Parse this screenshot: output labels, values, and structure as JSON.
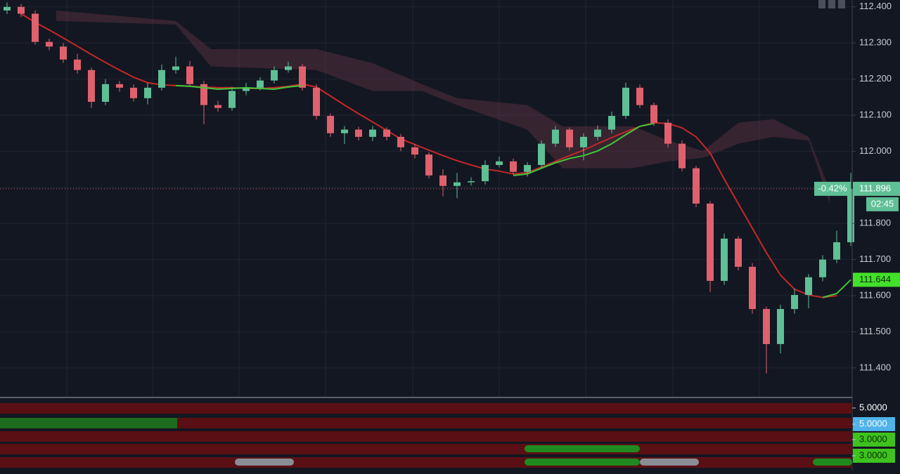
{
  "chart_data": {
    "type": "candlestick",
    "up_color": "#5fbf95",
    "down_color": "#e0616e",
    "ylim": [
      111.32,
      112.419
    ],
    "yticks": [
      {
        "value": 112.4,
        "label": "112.400"
      },
      {
        "value": 112.3,
        "label": "112.300"
      },
      {
        "value": 112.2,
        "label": "112.200"
      },
      {
        "value": 112.1,
        "label": "112.100"
      },
      {
        "value": 112.0,
        "label": "112.000"
      },
      {
        "value": 111.9,
        "label": "111.900"
      },
      {
        "value": 111.8,
        "label": "111.800"
      },
      {
        "value": 111.7,
        "label": "111.700"
      },
      {
        "value": 111.6,
        "label": "111.600"
      },
      {
        "value": 111.5,
        "label": "111.500"
      },
      {
        "value": 111.4,
        "label": "111.400"
      }
    ],
    "grid": true,
    "open": [
      112.39,
      112.4,
      112.381,
      112.303,
      112.29,
      112.254,
      112.225,
      112.137,
      112.186,
      112.176,
      112.147,
      112.176,
      112.225,
      112.235,
      112.186,
      112.128,
      112.12,
      112.167,
      112.176,
      112.196,
      112.225,
      112.235,
      112.176,
      112.098,
      112.05,
      112.06,
      112.04,
      112.06,
      112.04,
      112.011,
      111.991,
      111.933,
      111.904,
      111.914,
      111.917,
      111.962,
      111.972,
      111.943,
      111.962,
      112.021,
      112.06,
      112.011,
      112.04,
      112.06,
      112.098,
      112.176,
      112.128,
      112.079,
      112.021,
      111.953,
      111.855,
      111.641,
      111.758,
      111.68,
      111.563,
      111.466,
      111.563,
      111.602,
      111.651,
      111.7,
      111.748
    ],
    "high": [
      112.412,
      112.408,
      112.39,
      112.312,
      112.3,
      112.27,
      112.232,
      112.2,
      112.195,
      112.185,
      112.19,
      112.24,
      112.262,
      112.25,
      112.195,
      112.14,
      112.178,
      112.19,
      112.205,
      112.235,
      112.248,
      112.242,
      112.185,
      112.105,
      112.07,
      112.068,
      112.07,
      112.066,
      112.048,
      112.02,
      111.998,
      111.95,
      111.94,
      111.928,
      111.975,
      111.985,
      111.98,
      111.97,
      112.03,
      112.07,
      112.066,
      112.05,
      112.072,
      112.11,
      112.19,
      112.185,
      112.135,
      112.088,
      112.03,
      111.96,
      111.862,
      111.772,
      111.765,
      111.69,
      111.57,
      111.575,
      111.62,
      111.66,
      111.712,
      111.78,
      111.94
    ],
    "low": [
      112.38,
      112.372,
      112.295,
      112.28,
      112.245,
      112.215,
      112.12,
      112.128,
      112.165,
      112.138,
      112.13,
      112.168,
      112.215,
      112.178,
      112.075,
      112.11,
      112.112,
      112.155,
      112.168,
      112.188,
      112.218,
      112.168,
      112.088,
      112.04,
      112.02,
      112.03,
      112.028,
      112.03,
      112.0,
      111.98,
      111.925,
      111.875,
      111.87,
      111.905,
      111.908,
      111.955,
      111.935,
      111.93,
      111.955,
      112.012,
      112.002,
      111.975,
      112.03,
      112.05,
      112.09,
      112.12,
      112.07,
      112.01,
      111.945,
      111.845,
      111.61,
      111.63,
      111.67,
      111.55,
      111.385,
      111.44,
      111.55,
      111.565,
      111.64,
      111.69,
      111.738
    ],
    "close": [
      112.4,
      112.381,
      112.303,
      112.29,
      112.254,
      112.225,
      112.137,
      112.186,
      112.176,
      112.147,
      112.176,
      112.225,
      112.235,
      112.186,
      112.128,
      112.12,
      112.167,
      112.176,
      112.196,
      112.225,
      112.235,
      112.176,
      112.098,
      112.05,
      112.06,
      112.04,
      112.06,
      112.04,
      112.011,
      111.991,
      111.933,
      111.904,
      111.914,
      111.917,
      111.962,
      111.972,
      111.943,
      111.962,
      112.021,
      112.06,
      112.011,
      112.04,
      112.06,
      112.098,
      112.176,
      112.128,
      112.079,
      112.021,
      111.953,
      111.855,
      111.641,
      111.758,
      111.68,
      111.563,
      111.466,
      111.563,
      111.602,
      111.651,
      111.7,
      111.748,
      111.896
    ],
    "ma_red": {
      "color": "#c62828",
      "values": [
        null,
        112.381,
        112.357,
        112.336,
        112.314,
        112.291,
        112.268,
        112.246,
        112.225,
        112.205,
        112.19,
        112.184,
        112.182,
        112.18,
        112.178,
        112.176,
        112.176,
        112.174,
        112.174,
        112.176,
        112.18,
        112.186,
        112.178,
        112.153,
        112.128,
        112.104,
        112.081,
        112.058,
        112.034,
        112.019,
        112.003,
        111.988,
        111.974,
        111.962,
        111.951,
        111.945,
        111.937,
        111.941,
        111.956,
        111.972,
        111.988,
        112.003,
        112.021,
        112.038,
        112.054,
        112.069,
        112.079,
        112.077,
        112.065,
        112.04,
        111.995,
        111.923,
        111.855,
        111.787,
        111.719,
        111.657,
        111.618,
        111.602,
        111.595,
        111.6,
        null
      ]
    },
    "ma_green": {
      "color": "#43c63a",
      "values": [
        null,
        null,
        null,
        null,
        null,
        null,
        null,
        null,
        null,
        null,
        null,
        null,
        112.182,
        112.18,
        112.176,
        112.172,
        112.174,
        112.176,
        112.174,
        112.172,
        112.178,
        112.182,
        null,
        null,
        null,
        null,
        null,
        null,
        null,
        null,
        null,
        null,
        null,
        null,
        null,
        null,
        111.933,
        111.937,
        111.953,
        111.968,
        111.98,
        111.988,
        112.001,
        112.021,
        112.046,
        112.069,
        112.077,
        null,
        null,
        null,
        null,
        null,
        null,
        null,
        null,
        null,
        null,
        null,
        111.595,
        111.606,
        111.644
      ]
    },
    "cloud": {
      "color": "rgba(120,60,75,0.35)",
      "x": [
        3.5,
        12,
        14.5,
        22,
        26,
        29.5,
        32,
        37,
        39.5,
        44.5,
        47,
        49.5,
        52,
        54.5,
        57,
        58.5
      ],
      "upper": [
        112.39,
        112.361,
        112.283,
        112.283,
        112.244,
        112.186,
        112.147,
        112.128,
        112.069,
        112.069,
        112.03,
        112.001,
        112.079,
        112.089,
        112.04,
        111.894
      ],
      "lower": [
        112.361,
        112.351,
        112.235,
        112.225,
        112.167,
        112.167,
        112.128,
        112.06,
        111.953,
        111.953,
        111.972,
        111.982,
        112.021,
        112.04,
        112.03,
        111.855
      ]
    },
    "last_price": {
      "value": 111.896,
      "label": "111.896"
    },
    "change": {
      "value": -0.42,
      "label": "-0.42%"
    },
    "countdown": "02:45",
    "ma_value": {
      "value": 111.644,
      "label": "111.644"
    },
    "indicators": [
      {
        "value": 5,
        "label": "5.0000"
      },
      {
        "value": 5,
        "label": "5.0000"
      },
      {
        "value": 3,
        "label": "3.0000"
      },
      {
        "value": 3,
        "label": "3.0000"
      }
    ]
  }
}
